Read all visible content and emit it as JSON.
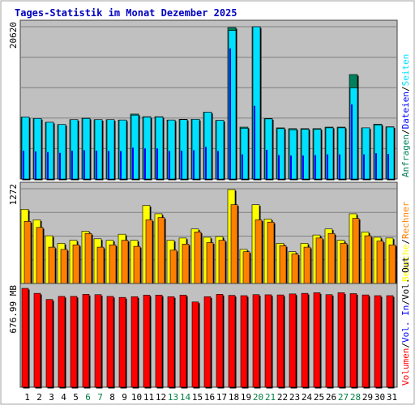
{
  "title": "Tages-Statistik im Monat Dezember 2025",
  "colors": {
    "title": "#0000c0",
    "plot_bg": "#c0c0c0",
    "grid": "#808080",
    "frame": "#404040",
    "anfragen": "#00805c",
    "dateien": "#0000ff",
    "seiten": "#00e0ff",
    "besuche": "#ffff00",
    "rechner": "#ff8000",
    "volumen": "#ff0000",
    "weekday": "#000000",
    "weekend": "#008040"
  },
  "chart_data": [
    {
      "type": "bar",
      "panel": "top",
      "ylabel_value": "20620",
      "ymax": 20620,
      "right_legend": [
        {
          "text": "Anfragen",
          "color": "#00805c"
        },
        {
          "text": "/",
          "color": "#000000"
        },
        {
          "text": "Dateien",
          "color": "#0000ff"
        },
        {
          "text": "/",
          "color": "#000000"
        },
        {
          "text": "Seiten",
          "color": "#00e0ff"
        }
      ],
      "series": [
        {
          "name": "Anfragen",
          "values": [
            8300,
            8100,
            7600,
            7300,
            7950,
            8150,
            7950,
            7950,
            7900,
            8700,
            8350,
            8350,
            7900,
            8000,
            8000,
            8950,
            7850,
            20300,
            6950,
            20400,
            8100,
            6850,
            6750,
            6750,
            6750,
            6950,
            6950,
            14000,
            6850,
            7350,
            7000
          ]
        },
        {
          "name": "Seiten",
          "values": [
            8300,
            8100,
            7600,
            7300,
            7950,
            8100,
            7950,
            7950,
            7900,
            8550,
            8300,
            8300,
            7900,
            7950,
            8000,
            8950,
            7850,
            19900,
            6800,
            20400,
            8050,
            6750,
            6600,
            6650,
            6650,
            6850,
            6850,
            12200,
            6850,
            7250,
            6950
          ]
        },
        {
          "name": "Dateien",
          "values": [
            3800,
            3700,
            3600,
            3500,
            3800,
            3850,
            3800,
            3750,
            3750,
            4200,
            4100,
            4100,
            3750,
            3800,
            3850,
            4300,
            3750,
            17500,
            3300,
            9800,
            3900,
            3200,
            3150,
            3150,
            3200,
            3300,
            3300,
            10000,
            3300,
            3450,
            3350
          ]
        }
      ]
    },
    {
      "type": "bar",
      "panel": "middle",
      "ylabel_value": "1272",
      "ymax": 1272,
      "right_legend": [
        {
          "text": "Besuche",
          "color": "#ffff00"
        },
        {
          "text": "/",
          "color": "#000000"
        },
        {
          "text": "Rechner",
          "color": "#ff8000"
        }
      ],
      "series": [
        {
          "name": "Besuche",
          "values": [
            980,
            840,
            630,
            530,
            570,
            690,
            590,
            570,
            650,
            570,
            1030,
            920,
            570,
            600,
            720,
            610,
            620,
            1240,
            450,
            1040,
            850,
            530,
            420,
            530,
            640,
            720,
            570,
            920,
            680,
            610,
            600
          ]
        },
        {
          "name": "Rechner",
          "values": [
            820,
            740,
            480,
            450,
            510,
            660,
            480,
            510,
            570,
            490,
            840,
            870,
            440,
            520,
            680,
            540,
            570,
            1040,
            420,
            840,
            810,
            500,
            390,
            480,
            600,
            660,
            530,
            860,
            630,
            560,
            510
          ]
        }
      ]
    },
    {
      "type": "bar",
      "panel": "bottom",
      "ylabel_value": "676.99 MB",
      "ymax": 676.99,
      "right_legend": [
        {
          "text": "Volumen",
          "color": "#ff0000"
        },
        {
          "text": "/",
          "color": "#000000"
        },
        {
          "text": "Vol. In",
          "color": "#0000ff"
        },
        {
          "text": "/",
          "color": "#000000"
        },
        {
          "text": "Vol. Out",
          "color": "#000000"
        }
      ],
      "series": [
        {
          "name": "Volumen",
          "values": [
            677,
            643,
            601,
            622,
            622,
            636,
            634,
            622,
            615,
            620,
            631,
            631,
            620,
            631,
            584,
            620,
            636,
            629,
            627,
            634,
            633,
            632,
            639,
            643,
            647,
            634,
            647,
            641,
            632,
            627,
            627
          ]
        }
      ]
    }
  ],
  "days": [
    {
      "label": "1",
      "weekend": false
    },
    {
      "label": "2",
      "weekend": false
    },
    {
      "label": "3",
      "weekend": false
    },
    {
      "label": "4",
      "weekend": false
    },
    {
      "label": "5",
      "weekend": false
    },
    {
      "label": "6",
      "weekend": true
    },
    {
      "label": "7",
      "weekend": true
    },
    {
      "label": "8",
      "weekend": false
    },
    {
      "label": "9",
      "weekend": false
    },
    {
      "label": "10",
      "weekend": false
    },
    {
      "label": "11",
      "weekend": false
    },
    {
      "label": "12",
      "weekend": false
    },
    {
      "label": "13",
      "weekend": true
    },
    {
      "label": "14",
      "weekend": true
    },
    {
      "label": "15",
      "weekend": false
    },
    {
      "label": "16",
      "weekend": false
    },
    {
      "label": "17",
      "weekend": false
    },
    {
      "label": "18",
      "weekend": false
    },
    {
      "label": "19",
      "weekend": false
    },
    {
      "label": "20",
      "weekend": true
    },
    {
      "label": "21",
      "weekend": true
    },
    {
      "label": "22",
      "weekend": false
    },
    {
      "label": "23",
      "weekend": false
    },
    {
      "label": "24",
      "weekend": false
    },
    {
      "label": "25",
      "weekend": false
    },
    {
      "label": "26",
      "weekend": false
    },
    {
      "label": "27",
      "weekend": true
    },
    {
      "label": "28",
      "weekend": true
    },
    {
      "label": "29",
      "weekend": false
    },
    {
      "label": "30",
      "weekend": false
    },
    {
      "label": "31",
      "weekend": false
    }
  ]
}
